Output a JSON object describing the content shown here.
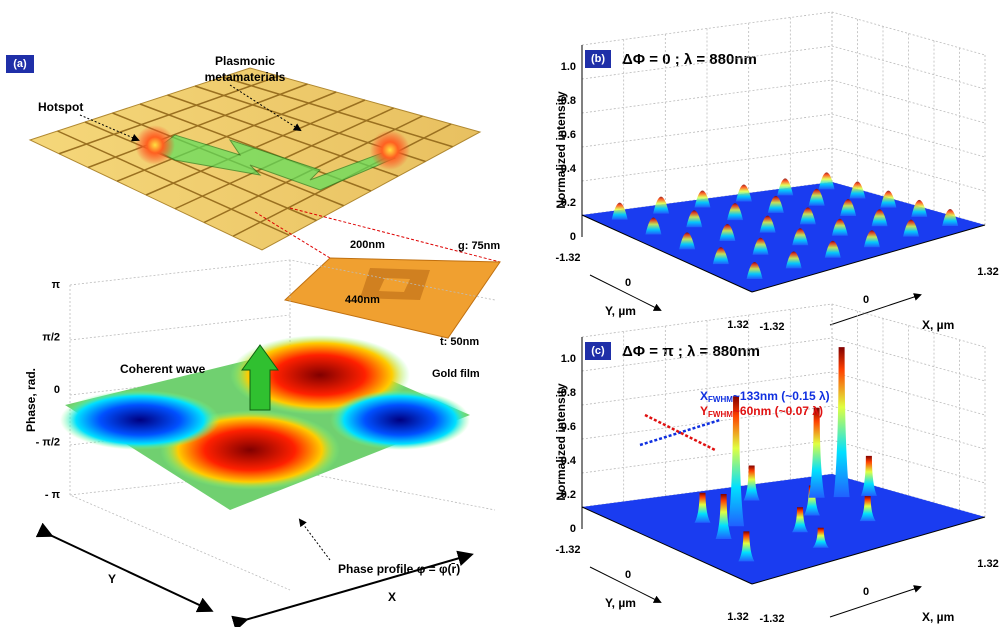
{
  "panel_a": {
    "label": "(a)",
    "metamaterial_label": [
      "Plasmonic",
      "metamaterials"
    ],
    "hotspot_label": "Hotspot",
    "inset": {
      "width_label": "200nm",
      "gap_label": "g: 75nm",
      "period_label": "440nm",
      "thickness_label": "t: 50nm",
      "film_label": "Gold film"
    },
    "wave_label": "Coherent wave",
    "phase_profile_label": "Phase profile φ = φ(r̄)",
    "z_axis_label": "Phase, rad.",
    "z_ticks": [
      "π",
      "π/2",
      "0",
      "- π/2",
      "- π"
    ],
    "x_axis_label": "X",
    "y_axis_label": "Y"
  },
  "panel_b": {
    "label": "(b)",
    "title": "ΔΦ = 0 ; λ = 880nm",
    "z_axis_label": "Normalized intensity",
    "z_ticks": [
      "1.0",
      "0.8",
      "0.6",
      "0.4",
      "0.2",
      "0"
    ],
    "y_ticks": [
      "-1.32",
      "0",
      "1.32"
    ],
    "x_ticks": [
      "-1.32",
      "0",
      "1.32"
    ],
    "y_axis_label": "Y, µm",
    "x_axis_label": "X, µm"
  },
  "panel_c": {
    "label": "(c)",
    "title": "ΔΦ = π ; λ = 880nm",
    "z_axis_label": "Normalized intensity",
    "z_ticks": [
      "1.0",
      "0.8",
      "0.6",
      "0.4",
      "0.2",
      "0"
    ],
    "y_ticks": [
      "-1.32",
      "0",
      "1.32"
    ],
    "x_ticks": [
      "-1.32",
      "0",
      "1.32"
    ],
    "y_axis_label": "Y, µm",
    "x_axis_label": "X, µm",
    "x_fwhm": [
      "X",
      "FWHM",
      "~133nm (~0.15 λ)"
    ],
    "y_fwhm": [
      "Y",
      "FWHM",
      "~60nm (~0.07 λ)"
    ]
  }
}
